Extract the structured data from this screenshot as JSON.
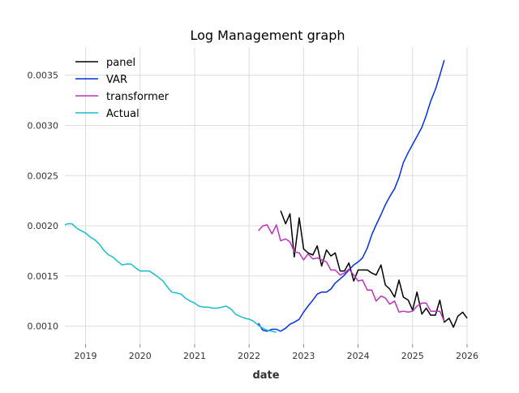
{
  "chart_data": {
    "type": "line",
    "title": "Log Management graph",
    "xlabel": "date",
    "ylabel": "",
    "xlim": [
      2018.62,
      2026.0
    ],
    "ylim": [
      0.00082,
      0.00378
    ],
    "xticks": [
      2019,
      2020,
      2021,
      2022,
      2023,
      2024,
      2025,
      2026
    ],
    "xtick_labels": [
      "2019",
      "2020",
      "2021",
      "2022",
      "2023",
      "2024",
      "2025",
      "2026"
    ],
    "yticks": [
      0.001,
      0.0015,
      0.002,
      0.0025,
      0.003,
      0.0035
    ],
    "ytick_labels": [
      "0.0010",
      "0.0015",
      "0.0020",
      "0.0025",
      "0.0030",
      "0.0035"
    ],
    "grid": true,
    "legend_position": "top-left",
    "series": [
      {
        "name": "panel",
        "color": "#000000",
        "x": [
          2022.58,
          2022.67,
          2022.75,
          2022.83,
          2022.92,
          2023.0,
          2023.08,
          2023.17,
          2023.25,
          2023.33,
          2023.42,
          2023.5,
          2023.58,
          2023.67,
          2023.75,
          2023.83,
          2023.92,
          2024.0,
          2024.08,
          2024.17,
          2024.25,
          2024.33,
          2024.42,
          2024.5,
          2024.58,
          2024.67,
          2024.75,
          2024.83,
          2024.92,
          2025.0,
          2025.08,
          2025.17,
          2025.25,
          2025.33,
          2025.42,
          2025.5,
          2025.58,
          2025.67,
          2025.75,
          2025.83,
          2025.92,
          2026.0
        ],
        "y": [
          0.00215,
          0.00202,
          0.00212,
          0.00169,
          0.00208,
          0.00177,
          0.00173,
          0.00171,
          0.0018,
          0.0016,
          0.00176,
          0.0017,
          0.00173,
          0.00155,
          0.00155,
          0.00163,
          0.00145,
          0.00156,
          0.00156,
          0.00156,
          0.00153,
          0.00151,
          0.00161,
          0.00141,
          0.00137,
          0.00129,
          0.00146,
          0.00129,
          0.00126,
          0.00116,
          0.00134,
          0.00112,
          0.00118,
          0.00111,
          0.00111,
          0.00126,
          0.00104,
          0.00108,
          0.00099,
          0.0011,
          0.00114,
          0.00108
        ]
      },
      {
        "name": "VAR",
        "color": "#0033dd",
        "x": [
          2022.17,
          2022.25,
          2022.33,
          2022.42,
          2022.5,
          2022.58,
          2022.67,
          2022.75,
          2022.83,
          2022.92,
          2023.0,
          2023.08,
          2023.17,
          2023.25,
          2023.33,
          2023.42,
          2023.5,
          2023.58,
          2023.67,
          2023.75,
          2023.83,
          2023.92,
          2024.0,
          2024.08,
          2024.17,
          2024.25,
          2024.33,
          2024.42,
          2024.5,
          2024.58,
          2024.67,
          2024.75,
          2024.83,
          2024.92,
          2025.0,
          2025.08,
          2025.17,
          2025.25,
          2025.33,
          2025.42,
          2025.5,
          2025.58
        ],
        "y": [
          0.00103,
          0.00096,
          0.00095,
          0.00097,
          0.00097,
          0.00095,
          0.00098,
          0.00102,
          0.00104,
          0.00107,
          0.00114,
          0.0012,
          0.00126,
          0.00132,
          0.00134,
          0.00134,
          0.00137,
          0.00143,
          0.00147,
          0.00151,
          0.00156,
          0.00161,
          0.00164,
          0.00168,
          0.00178,
          0.00191,
          0.00201,
          0.00211,
          0.00221,
          0.00229,
          0.00237,
          0.00248,
          0.00263,
          0.00273,
          0.00281,
          0.00289,
          0.00298,
          0.0031,
          0.00324,
          0.00336,
          0.0035,
          0.00365
        ]
      },
      {
        "name": "transformer",
        "color": "#bb33bb",
        "x": [
          2022.17,
          2022.25,
          2022.33,
          2022.42,
          2022.5,
          2022.58,
          2022.67,
          2022.75,
          2022.83,
          2022.92,
          2023.0,
          2023.08,
          2023.17,
          2023.25,
          2023.33,
          2023.42,
          2023.5,
          2023.58,
          2023.67,
          2023.75,
          2023.83,
          2023.92,
          2024.0,
          2024.08,
          2024.17,
          2024.25,
          2024.33,
          2024.42,
          2024.5,
          2024.58,
          2024.67,
          2024.75,
          2024.83,
          2024.92,
          2025.0,
          2025.08,
          2025.17,
          2025.25,
          2025.33,
          2025.42,
          2025.5,
          2025.58
        ],
        "y": [
          0.00195,
          0.002,
          0.00201,
          0.00192,
          0.00201,
          0.00185,
          0.00187,
          0.00184,
          0.00174,
          0.00173,
          0.00166,
          0.00172,
          0.00167,
          0.00168,
          0.00166,
          0.00164,
          0.00156,
          0.00156,
          0.00151,
          0.00153,
          0.00157,
          0.00151,
          0.00145,
          0.00146,
          0.00136,
          0.00136,
          0.00125,
          0.0013,
          0.00128,
          0.00122,
          0.00125,
          0.00114,
          0.00115,
          0.00114,
          0.00115,
          0.0012,
          0.00123,
          0.00123,
          0.00115,
          0.00115,
          0.00115,
          0.00105
        ]
      },
      {
        "name": "Actual",
        "color": "#17becf",
        "x": [
          2018.62,
          2018.67,
          2018.75,
          2018.83,
          2018.92,
          2019.0,
          2019.08,
          2019.17,
          2019.25,
          2019.33,
          2019.42,
          2019.5,
          2019.58,
          2019.67,
          2019.75,
          2019.83,
          2019.92,
          2020.0,
          2020.08,
          2020.17,
          2020.25,
          2020.33,
          2020.42,
          2020.5,
          2020.58,
          2020.67,
          2020.75,
          2020.83,
          2020.92,
          2021.0,
          2021.08,
          2021.17,
          2021.25,
          2021.33,
          2021.42,
          2021.5,
          2021.58,
          2021.67,
          2021.75,
          2021.83,
          2021.92,
          2022.0,
          2022.08,
          2022.17,
          2022.25,
          2022.33,
          2022.42,
          2022.5
        ],
        "y": [
          0.00201,
          0.00202,
          0.00202,
          0.00198,
          0.00195,
          0.00193,
          0.00189,
          0.00186,
          0.00182,
          0.00176,
          0.00171,
          0.00169,
          0.00165,
          0.00161,
          0.00162,
          0.00162,
          0.00158,
          0.00155,
          0.00155,
          0.00155,
          0.00152,
          0.00149,
          0.00145,
          0.00139,
          0.00134,
          0.00133,
          0.00132,
          0.00128,
          0.00125,
          0.00123,
          0.0012,
          0.00119,
          0.00119,
          0.00118,
          0.00118,
          0.00119,
          0.0012,
          0.00117,
          0.00112,
          0.0011,
          0.00108,
          0.00107,
          0.00105,
          0.00101,
          0.00098,
          0.00096,
          0.00095,
          0.00094
        ]
      }
    ]
  }
}
